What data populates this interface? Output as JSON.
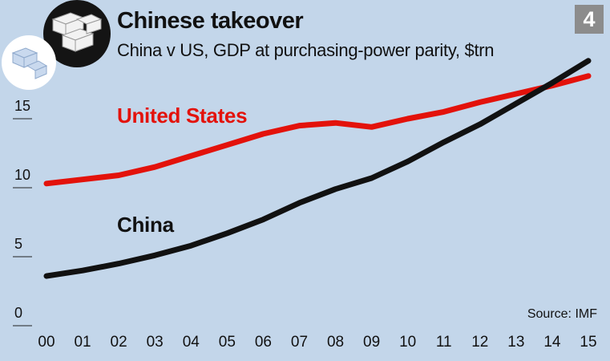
{
  "header": {
    "title": "Chinese takeover",
    "subtitle": "China v US, GDP at purchasing-power parity, $trn",
    "badge": "4",
    "source": "Source: IMF",
    "icon": "stacked-blocks-icon"
  },
  "chart_data": {
    "type": "line",
    "title": "Chinese takeover",
    "subtitle": "China v US, GDP at purchasing-power parity, $trn",
    "x": [
      "00",
      "01",
      "02",
      "03",
      "04",
      "05",
      "06",
      "07",
      "08",
      "09",
      "10",
      "11",
      "12",
      "13",
      "14",
      "15"
    ],
    "yticks": [
      "0",
      "5",
      "10",
      "15"
    ],
    "ylim": [
      0,
      20
    ],
    "grid": false,
    "series": [
      {
        "name": "United States",
        "color": "#e3120b",
        "values": [
          10.3,
          10.6,
          10.9,
          11.5,
          12.3,
          13.1,
          13.9,
          14.5,
          14.7,
          14.4,
          15.0,
          15.5,
          16.2,
          16.8,
          17.4,
          18.1
        ]
      },
      {
        "name": "China",
        "color": "#111111",
        "values": [
          3.6,
          4.0,
          4.5,
          5.1,
          5.8,
          6.7,
          7.7,
          8.9,
          9.9,
          10.7,
          11.9,
          13.3,
          14.6,
          16.1,
          17.6,
          19.2
        ]
      }
    ]
  }
}
